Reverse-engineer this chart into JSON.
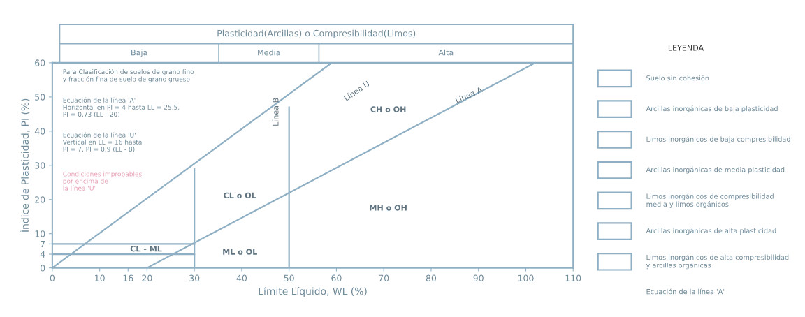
{
  "chart_data": {
    "type": "line",
    "title": "Plasticidad(Arcillas) o Compresibilidad(Limos)",
    "xlabel": "Límite Líquido, WL (%)",
    "ylabel": "Índice de Plasticidad, PI (%)",
    "legend_title": "LEYENDA",
    "xlim": [
      0,
      110
    ],
    "ylim": [
      0,
      60
    ],
    "xticks": [
      0,
      10,
      16,
      20,
      30,
      40,
      50,
      60,
      70,
      80,
      90,
      100,
      110
    ],
    "yticks": [
      0,
      4,
      7,
      10,
      20,
      30,
      40,
      50,
      60
    ],
    "grid": false,
    "marker": "none",
    "line_style": "solid",
    "series": [
      {
        "color": "#8fb0c4",
        "x": [
          0,
          59
        ],
        "values": [
          0,
          60
        ]
      },
      {
        "color": "#8fb0c4",
        "x": [
          20,
          102
        ],
        "values": [
          0,
          60
        ]
      },
      {
        "color": "#8fb0c4",
        "x": [
          30,
          30
        ],
        "values": [
          0,
          29
        ]
      },
      {
        "color": "#8fb0c4",
        "x": [
          50,
          50
        ],
        "values": [
          0,
          47
        ]
      },
      {
        "color": "#8fb0c4",
        "x": [
          0,
          30
        ],
        "values": [
          4,
          4
        ]
      },
      {
        "color": "#8fb0c4",
        "x": [
          0,
          30
        ],
        "values": [
          7,
          7
        ]
      }
    ],
    "annotations": [
      "Baja",
      "Media",
      "Alta",
      "Para Clasificación de suelos de grano fino\ny fracción fina de suelo de grano grueso",
      "Ecuación de la línea 'A'\nHorizontal en PI = 4 hasta LL = 25.5,\nPI = 0.73 (LL - 20)",
      "Ecuación de la línea 'U'\nVertical en LL = 16 hasta\nPI = 7, PI = 0.9 (LL - 8)",
      "Condiciones improbables\npor encima de\nla línea 'U'",
      "CL - ML",
      "ML o OL",
      "CL o OL",
      "CH o OH",
      "MH o OH",
      "Línea U",
      "Línea A",
      "Línea B",
      "Suelo sin cohesión",
      "Arcillas inorgánicas de baja plasticidad",
      "Limos inorgánicos de baja compresibilidad",
      "Arcillas inorgánicas de media plasticidad",
      "Limos inorgánicos de compresibilidad\nmedia y limos orgánicos",
      "Arcillas inorgánicas de alta plasticidad",
      "Limos inorgánicos de alta compresibilidad\ny arcillas orgánicas",
      "Ecuación de la línea 'A'"
    ]
  }
}
